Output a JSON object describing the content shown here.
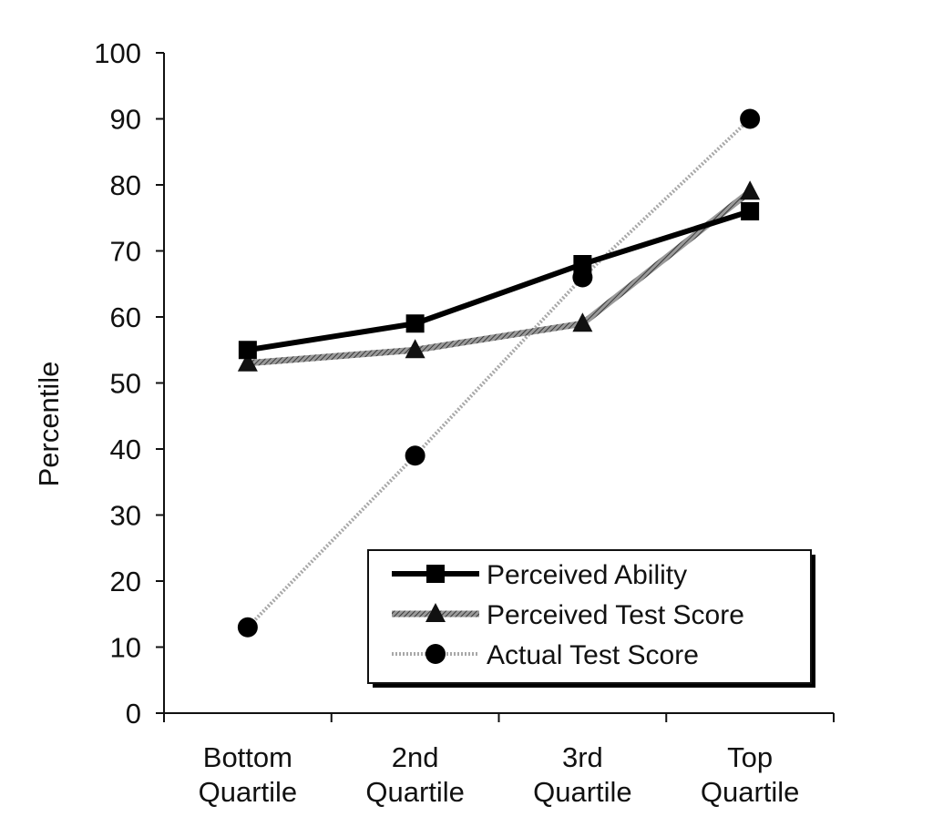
{
  "chart_data": {
    "type": "line",
    "title": "",
    "xlabel": "",
    "ylabel": "Percentile",
    "ylim": [
      0,
      100
    ],
    "yticks": [
      "0",
      "10",
      "20",
      "30",
      "40",
      "50",
      "60",
      "70",
      "80",
      "90",
      "100"
    ],
    "categories": [
      [
        "Bottom",
        "Quartile"
      ],
      [
        "2nd",
        "Quartile"
      ],
      [
        "3rd",
        "Quartile"
      ],
      [
        "Top",
        "Quartile"
      ]
    ],
    "grid": false,
    "legend_position": "bottom-right",
    "series": [
      {
        "name": "Perceived Ability",
        "values": [
          55,
          59,
          68,
          76
        ],
        "marker": "square",
        "color": "#000000",
        "style": "solid"
      },
      {
        "name": "Perceived Test Score",
        "values": [
          53,
          55,
          59,
          79
        ],
        "marker": "triangle",
        "color": "#555555",
        "style": "hatched"
      },
      {
        "name": "Actual Test Score",
        "values": [
          13,
          39,
          66,
          90
        ],
        "marker": "circle",
        "color": "#888888",
        "style": "dotted"
      }
    ]
  }
}
